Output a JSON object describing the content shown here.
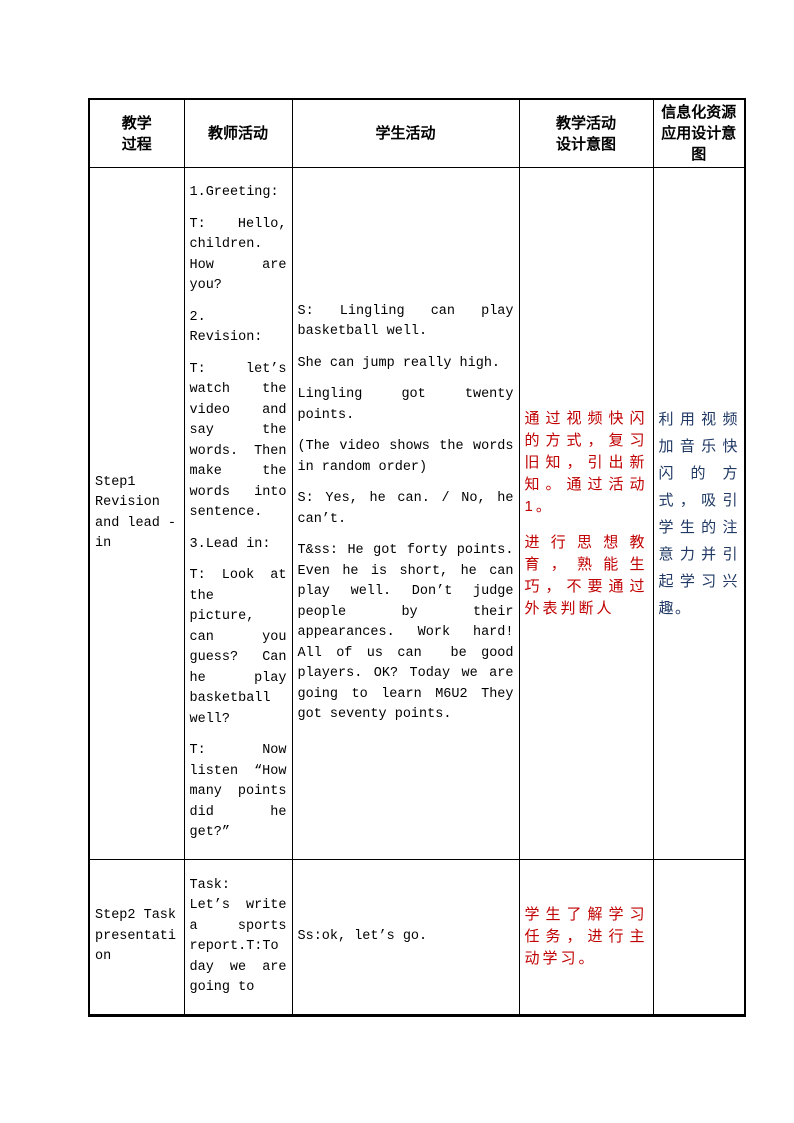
{
  "colors": {
    "border": "#000000",
    "body_text": "#000000",
    "intent_red": "#c00000",
    "it_resource_blue": "#1f3864"
  },
  "table": {
    "headers": [
      "教学\n过程",
      "教师活动",
      "学生活动",
      "教学活动\n设计意图",
      "信息化资源\n应用设计意\n图"
    ],
    "rows": [
      {
        "process": "Step1 Revision and lead - in",
        "teacher_paragraphs": [
          "1.Greeting:",
          "T: Hello, children. How are you?",
          "2. Revision:",
          "T: let’s watch the video and say the words. Then make the words into sentence.",
          "3.Lead in:",
          "T: Look at the picture, can you guess? Can he play basketball well?",
          "T: Now listen “How many points did he get?”"
        ],
        "student_paragraphs": [
          "S: Lingling can play basketball well.",
          "She can jump really high.",
          "Lingling got twenty points.",
          "(The video shows the words in random order)",
          "S: Yes, he can. / No, he can’t.",
          "T&ss: He got forty points. Even he is short, he can play well. Don’t judge people by their appearances. Work hard! All of us can  be good players. OK? Today we are going to learn M6U2 They got seventy points."
        ],
        "intent_paragraphs": [
          "通过视频快闪的方式，复习旧知，引出新知。通过活动1。",
          "进行思想教育，熟能生巧，不要通过外表判断人"
        ],
        "it_resource_paragraphs": [
          "利用视频加音乐快闪的方式，吸引学生的注意力并引起学习兴趣。"
        ]
      },
      {
        "process": "Step2 Task presentation",
        "teacher_paragraphs": [
          "Task:\nLet’s write a sports report.T:Today we are going to"
        ],
        "student_paragraphs": [
          "Ss:ok, let’s go."
        ],
        "intent_paragraphs": [
          "学生了解学习任务，进行主动学习。"
        ],
        "it_resource_paragraphs": []
      }
    ]
  }
}
